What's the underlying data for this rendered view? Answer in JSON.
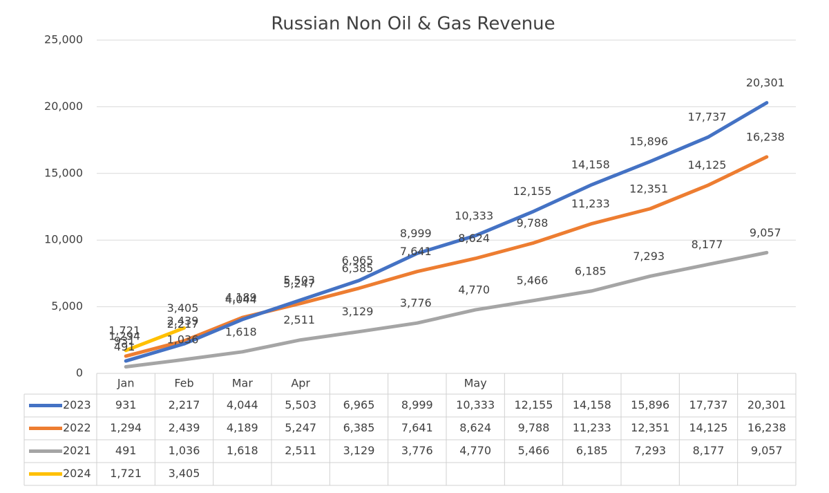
{
  "chart_data": {
    "type": "line",
    "title": "Russian Non Oil & Gas Revenue",
    "categories": [
      "Jan",
      "Feb",
      "Mar",
      "Apr",
      null,
      null,
      "May",
      null,
      null,
      null,
      null,
      null
    ],
    "series": [
      {
        "name": "2023",
        "color": "#4472c4",
        "values": [
          931,
          2217,
          4044,
          5503,
          6965,
          8999,
          10333,
          12155,
          14158,
          15896,
          17737,
          20301
        ],
        "value_labels": [
          "931",
          "2,217",
          "4,044",
          "5,503",
          "6,965",
          "8,999",
          "10,333",
          "12,155",
          "14,158",
          "15,896",
          "17,737",
          "20,301"
        ]
      },
      {
        "name": "2022",
        "color": "#ed7d31",
        "values": [
          1294,
          2439,
          4189,
          5247,
          6385,
          7641,
          8624,
          9788,
          11233,
          12351,
          14125,
          16238
        ],
        "value_labels": [
          "1,294",
          "2,439",
          "4,189",
          "5,247",
          "6,385",
          "7,641",
          "8,624",
          "9,788",
          "11,233",
          "12,351",
          "14,125",
          "16,238"
        ]
      },
      {
        "name": "2021",
        "color": "#a5a5a5",
        "values": [
          491,
          1036,
          1618,
          2511,
          3129,
          3776,
          4770,
          5466,
          6185,
          7293,
          8177,
          9057
        ],
        "value_labels": [
          "491",
          "1,036",
          "1,618",
          "2,511",
          "3,129",
          "3,776",
          "4,770",
          "5,466",
          "6,185",
          "7,293",
          "8,177",
          "9,057"
        ]
      },
      {
        "name": "2024",
        "color": "#ffc000",
        "values": [
          1721,
          3405,
          null,
          null,
          null,
          null,
          null,
          null,
          null,
          null,
          null,
          null
        ],
        "value_labels": [
          "1,721",
          "3,405",
          null,
          null,
          null,
          null,
          null,
          null,
          null,
          null,
          null,
          null
        ]
      }
    ],
    "ylim": [
      0,
      25000
    ],
    "yticks": [
      0,
      {
        "value": 5000,
        "label": "5,000"
      },
      {
        "value": 10000,
        "label": "10,000"
      },
      {
        "value": 15000,
        "label": "15,000"
      },
      {
        "value": 20000,
        "label": "20,000"
      },
      {
        "value": 25000,
        "label": "25,000"
      }
    ],
    "grid": true
  }
}
